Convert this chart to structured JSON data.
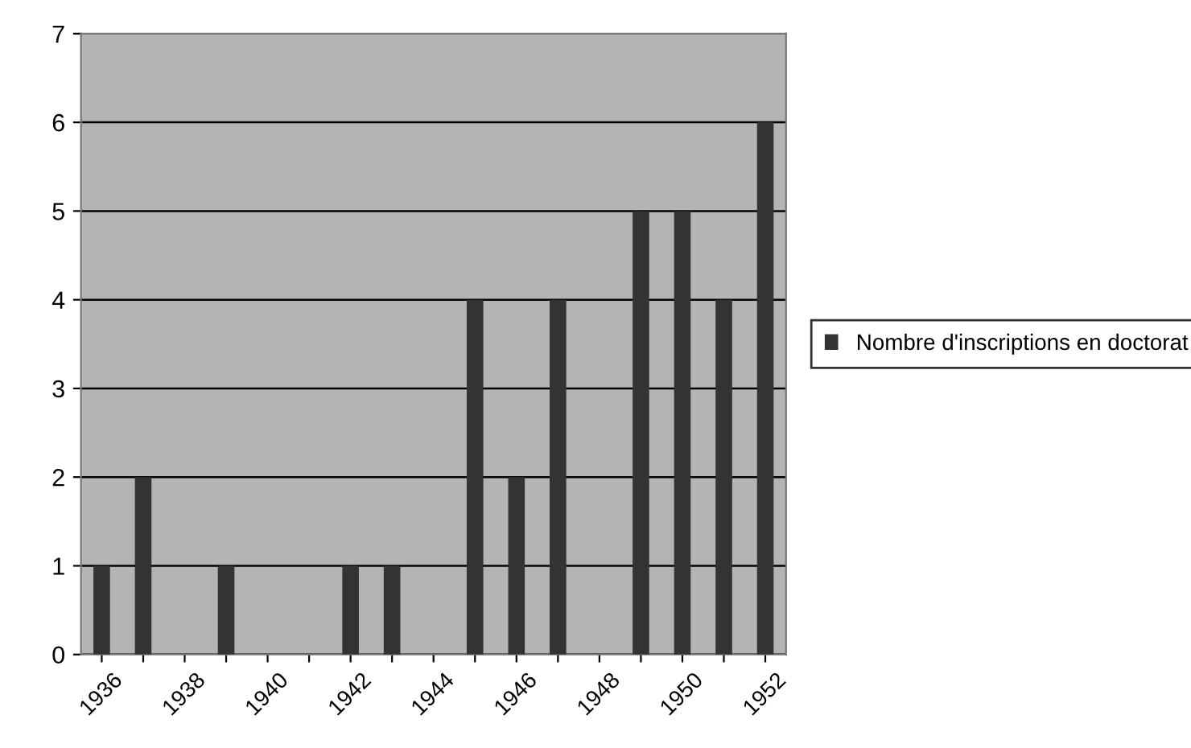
{
  "chart_data": {
    "type": "bar",
    "categories": [
      "1936",
      null,
      "1938",
      null,
      "1940",
      null,
      "1942",
      null,
      "1944",
      null,
      "1946",
      null,
      "1948",
      null,
      "1950",
      null,
      "1952"
    ],
    "series": [
      {
        "name": "Nombre d'inscriptions en doctorat",
        "color": "#333333",
        "values": [
          1,
          2,
          0,
          1,
          0,
          0,
          1,
          1,
          0,
          4,
          2,
          4,
          0,
          5,
          5,
          4,
          6
        ]
      }
    ],
    "ylim": [
      0,
      7
    ],
    "yticks": [
      0,
      1,
      2,
      3,
      4,
      5,
      6,
      7
    ],
    "grid": "y",
    "legend": "right"
  }
}
